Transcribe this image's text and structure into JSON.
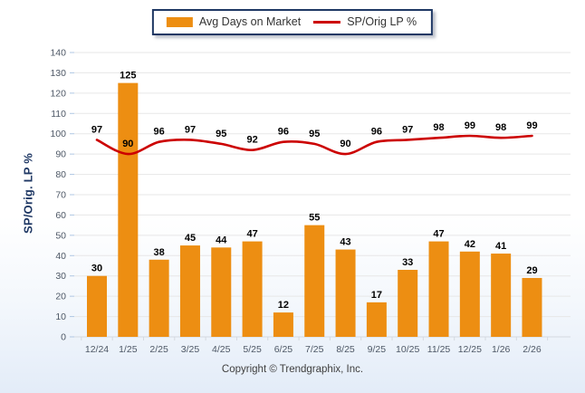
{
  "chart_data": {
    "type": "bar+line",
    "categories": [
      "12/24",
      "1/25",
      "2/25",
      "3/25",
      "4/25",
      "5/25",
      "6/25",
      "7/25",
      "8/25",
      "9/25",
      "10/25",
      "11/25",
      "12/25",
      "1/26",
      "2/26"
    ],
    "series": [
      {
        "name": "Avg Days on Market",
        "type": "bar",
        "color": "#ED8E12",
        "values": [
          30,
          125,
          38,
          45,
          44,
          47,
          12,
          55,
          43,
          17,
          33,
          47,
          42,
          41,
          29
        ]
      },
      {
        "name": "SP/Orig LP %",
        "type": "line",
        "color": "#CC0000",
        "values": [
          97,
          90,
          96,
          97,
          95,
          92,
          96,
          95,
          90,
          96,
          97,
          98,
          99,
          98,
          99
        ]
      }
    ],
    "title": "",
    "xlabel": "",
    "ylabel": "SP/Orig. LP %",
    "ylim": [
      0,
      140
    ],
    "ytick_step": 10,
    "grid": "horizontal",
    "legend_position": "top-center",
    "data_labels": true
  },
  "legend": {
    "bar_label": "Avg Days on Market",
    "line_label": "SP/Orig LP %"
  },
  "footer": {
    "copyright": "Copyright © Trendgraphix, Inc."
  },
  "colors": {
    "bar": "#ED8E12",
    "line": "#CC0000",
    "grid": "#E7E7E7",
    "axis_line": "#D4D9E0",
    "tick_mark": "#AFC7E3",
    "axis_text": "#4E5866",
    "data_label_text": "#000000",
    "axis_title": "#1F3864",
    "legend_border": "#1F3864"
  }
}
